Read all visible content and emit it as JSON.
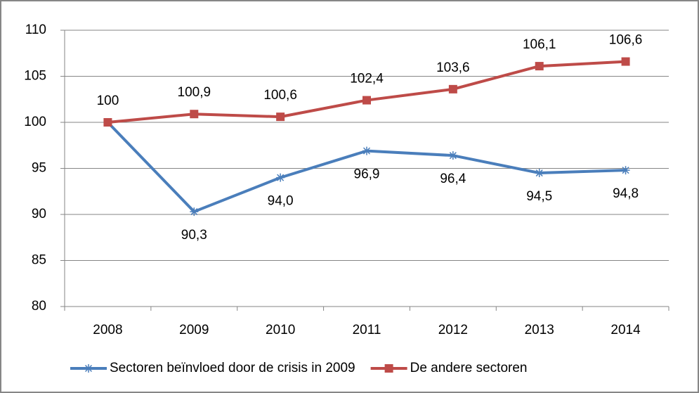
{
  "chart_data": {
    "type": "line",
    "categories": [
      "2008",
      "2009",
      "2010",
      "2011",
      "2012",
      "2013",
      "2014"
    ],
    "series": [
      {
        "name": "Sectoren beïnvloed door de crisis in 2009",
        "color": "#4a7ebb",
        "marker": "star",
        "values": [
          100,
          90.3,
          94.0,
          96.9,
          96.4,
          94.5,
          94.8
        ],
        "value_labels": [
          null,
          "90,3",
          "94,0",
          "96,9",
          "96,4",
          "94,5",
          "94,8"
        ],
        "label_position": "below"
      },
      {
        "name": "De andere sectoren",
        "color": "#be4b48",
        "marker": "square",
        "values": [
          100,
          100.9,
          100.6,
          102.4,
          103.6,
          106.1,
          106.6
        ],
        "value_labels": [
          "100",
          "100,9",
          "100,6",
          "102,4",
          "103,6",
          "106,1",
          "106,6"
        ],
        "label_position": "above"
      }
    ],
    "ylim": [
      80,
      110
    ],
    "yticks": [
      80,
      85,
      90,
      95,
      100,
      105,
      110
    ],
    "grid": true,
    "legend": "bottom"
  }
}
